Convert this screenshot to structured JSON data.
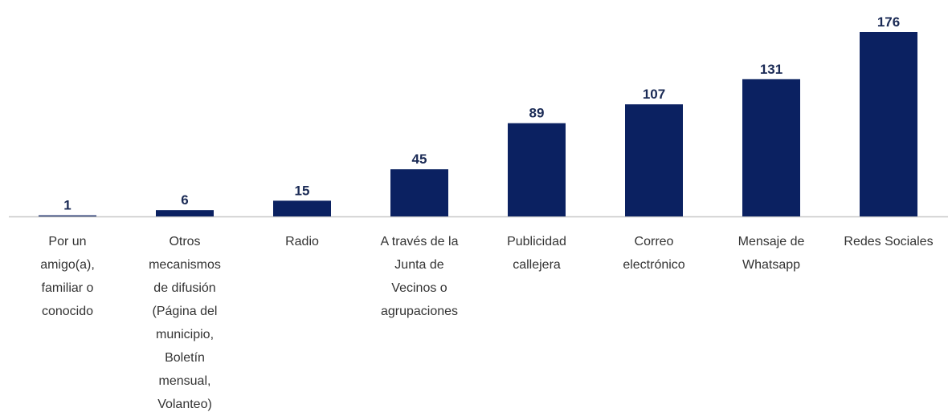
{
  "chart_data": {
    "type": "bar",
    "categories": [
      "Por un amigo(a), familiar o conocido",
      "Otros mecanismos de difusión (Página del municipio, Boletín mensual, Volanteo)",
      "Radio",
      "A través de la Junta de Vecinos o agrupaciones",
      "Publicidad callejera",
      "Correo electrónico",
      "Mensaje de Whatsapp",
      "Redes Sociales"
    ],
    "values": [
      1,
      6,
      15,
      45,
      89,
      107,
      131,
      176
    ],
    "color": "#0b2161"
  }
}
